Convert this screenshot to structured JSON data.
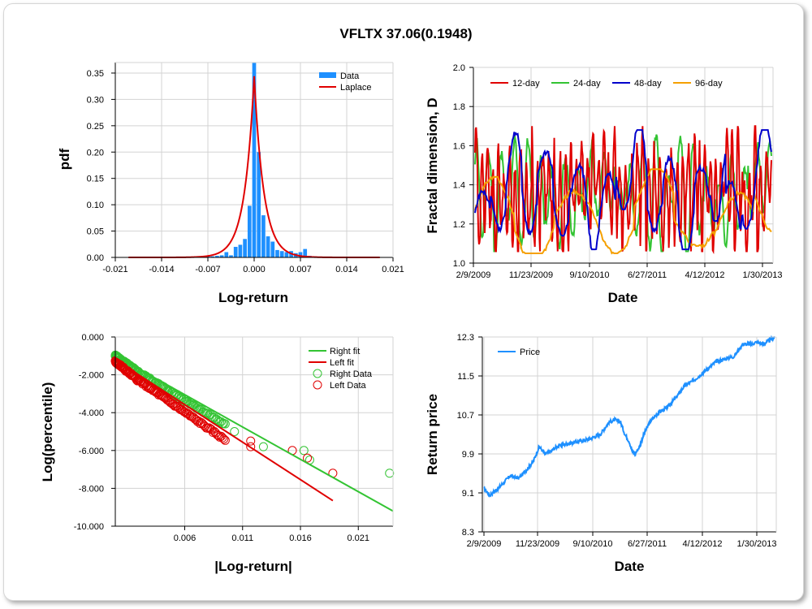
{
  "title": "VFLTX 37.06(0.1948)",
  "chart_data": [
    {
      "type": "bar",
      "id": "pdf",
      "xlabel": "Log-return",
      "ylabel": "pdf",
      "xlim": [
        -0.021,
        0.021
      ],
      "ylim": [
        0,
        0.37
      ],
      "xticks": [
        "-0.021",
        "-0.014",
        "-0.007",
        "0.000",
        "0.007",
        "0.014",
        "0.021"
      ],
      "xtick_values": [
        -0.021,
        -0.014,
        -0.007,
        0.0,
        0.007,
        0.014,
        0.021
      ],
      "yticks": [
        "0.00",
        "0.05",
        "0.10",
        "0.15",
        "0.20",
        "0.25",
        "0.30",
        "0.35"
      ],
      "ytick_values": [
        0,
        0.05,
        0.1,
        0.15,
        0.2,
        0.25,
        0.3,
        0.35
      ],
      "legend": [
        "Data",
        "Laplace"
      ],
      "colors": {
        "bars": "#1e90ff",
        "laplace": "#e00000"
      },
      "bin_width": 0.0007,
      "bars": {
        "x": [
          -0.0091,
          -0.0084,
          -0.0077,
          -0.007,
          -0.0063,
          -0.0056,
          -0.0049,
          -0.0042,
          -0.0035,
          -0.0028,
          -0.0021,
          -0.0014,
          -0.0007,
          0.0,
          0.0007,
          0.0014,
          0.0021,
          0.0028,
          0.0035,
          0.0042,
          0.0049,
          0.0056,
          0.0063,
          0.007,
          0.0077,
          0.0084,
          0.0091,
          0.0098,
          0.0105
        ],
        "values": [
          0.001,
          0.001,
          0.002,
          0.002,
          0.002,
          0.003,
          0.004,
          0.01,
          0.004,
          0.02,
          0.024,
          0.035,
          0.098,
          0.37,
          0.2,
          0.08,
          0.04,
          0.03,
          0.014,
          0.012,
          0.01,
          0.012,
          0.008,
          0.01,
          0.016,
          0.003,
          0.002,
          0.001,
          0.001
        ]
      },
      "laplace": {
        "mu": 0.0,
        "b": 0.00145
      }
    },
    {
      "type": "line",
      "id": "fractal",
      "xlabel": "Date",
      "ylabel": "Fractal dimension, D",
      "ylim": [
        1.0,
        2.0
      ],
      "yticks": [
        "1.0",
        "1.2",
        "1.4",
        "1.6",
        "1.8",
        "2.0"
      ],
      "ytick_values": [
        1.0,
        1.2,
        1.4,
        1.6,
        1.8,
        2.0
      ],
      "xticks": [
        "2/9/2009",
        "11/23/2009",
        "9/10/2010",
        "6/27/2011",
        "4/12/2012",
        "1/30/2013"
      ],
      "series": [
        {
          "name": "12-day",
          "color": "#e00000"
        },
        {
          "name": "24-day",
          "color": "#33c433"
        },
        {
          "name": "48-day",
          "color": "#0000cc"
        },
        {
          "name": "96-day",
          "color": "#f5a000"
        }
      ]
    },
    {
      "type": "scatter",
      "id": "tail",
      "xlabel": "|Log-return|",
      "ylabel": "Log(percentile)",
      "xlim": [
        0.0,
        0.024
      ],
      "ylim": [
        -10.0,
        0.0
      ],
      "xticks": [
        "0.006",
        "0.011",
        "0.016",
        "0.021"
      ],
      "xtick_values": [
        0.006,
        0.011,
        0.016,
        0.021
      ],
      "yticks": [
        "0.000",
        "-2.000",
        "-4.000",
        "-6.000",
        "-8.000",
        "-10.000"
      ],
      "ytick_values": [
        0,
        -2,
        -4,
        -6,
        -8,
        -10
      ],
      "legend": [
        "Right fit",
        "Left fit",
        "Right Data",
        "Left Data"
      ],
      "colors": {
        "right": "#33c433",
        "left": "#e00000"
      },
      "right_fit": {
        "x": [
          0.0,
          0.024
        ],
        "y": [
          -1.0,
          -9.2
        ]
      },
      "left_fit": {
        "x": [
          0.0,
          0.0188
        ],
        "y": [
          -1.2,
          -8.65
        ]
      },
      "right_outliers": {
        "x": [
          0.0103,
          0.0128,
          0.0163,
          0.0168,
          0.0237
        ],
        "y": [
          -5.0,
          -5.8,
          -6.0,
          -6.5,
          -7.2
        ]
      },
      "left_outliers": {
        "x": [
          0.0117,
          0.0117,
          0.0153,
          0.0166,
          0.0188
        ],
        "y": [
          -5.5,
          -5.8,
          -6.0,
          -6.4,
          -7.2
        ]
      }
    },
    {
      "type": "line",
      "id": "price",
      "xlabel": "Date",
      "ylabel": "Return price",
      "ylim": [
        8.3,
        12.3
      ],
      "yticks": [
        "8.3",
        "9.1",
        "9.9",
        "10.7",
        "11.5",
        "12.3"
      ],
      "ytick_values": [
        8.3,
        9.1,
        9.9,
        10.7,
        11.5,
        12.3
      ],
      "xticks": [
        "2/9/2009",
        "11/23/2009",
        "9/10/2010",
        "6/27/2011",
        "4/12/2012",
        "1/30/2013"
      ],
      "legend": [
        "Price"
      ],
      "colors": {
        "price": "#1e90ff"
      },
      "anchors": {
        "t": [
          0.0,
          0.02,
          0.05,
          0.09,
          0.12,
          0.15,
          0.17,
          0.19,
          0.21,
          0.23,
          0.25,
          0.28,
          0.32,
          0.36,
          0.4,
          0.43,
          0.45,
          0.47,
          0.485,
          0.5,
          0.51,
          0.52,
          0.535,
          0.55,
          0.57,
          0.6,
          0.63,
          0.66,
          0.69,
          0.72,
          0.75,
          0.77,
          0.8,
          0.83,
          0.86,
          0.89,
          0.92,
          0.94,
          0.96,
          0.98,
          1.0
        ],
        "y": [
          9.2,
          9.05,
          9.2,
          9.45,
          9.4,
          9.6,
          9.75,
          10.05,
          9.9,
          9.95,
          10.05,
          10.1,
          10.15,
          10.2,
          10.3,
          10.55,
          10.6,
          10.55,
          10.3,
          10.15,
          9.95,
          9.9,
          10.05,
          10.3,
          10.55,
          10.75,
          10.85,
          11.05,
          11.3,
          11.4,
          11.55,
          11.65,
          11.8,
          11.85,
          11.9,
          12.15,
          12.15,
          12.2,
          12.15,
          12.22,
          12.3
        ]
      }
    }
  ]
}
